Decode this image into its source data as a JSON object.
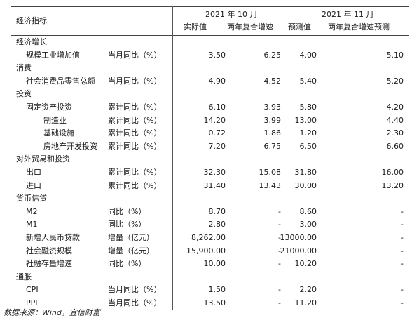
{
  "header": {
    "col_indicator": "经济指标",
    "group_oct": "2021 年 10 月",
    "group_nov": "2021 年 11 月",
    "col_actual": "实际值",
    "col_cagr": "两年复合增速",
    "col_forecast": "预测值",
    "col_cagr_forecast": "两年复合增速预测"
  },
  "rows": [
    {
      "level": 0,
      "name": "经济增长",
      "type": "",
      "v1": "",
      "v2": "",
      "v3": "",
      "v4": ""
    },
    {
      "level": 1,
      "name": "规模工业增加值",
      "type": "当月同比（%）",
      "v1": "3.50",
      "v2": "6.25",
      "v3": "4.00",
      "v4": "5.10"
    },
    {
      "level": 0,
      "name": "消费",
      "type": "",
      "v1": "",
      "v2": "",
      "v3": "",
      "v4": ""
    },
    {
      "level": 1,
      "name": "社会消费品零售总额",
      "type": "当月同比（%）",
      "v1": "4.90",
      "v2": "4.52",
      "v3": "5.40",
      "v4": "5.20"
    },
    {
      "level": 0,
      "name": "投资",
      "type": "",
      "v1": "",
      "v2": "",
      "v3": "",
      "v4": ""
    },
    {
      "level": 1,
      "name": "固定资产投资",
      "type": "累计同比（%）",
      "v1": "6.10",
      "v2": "3.93",
      "v3": "5.80",
      "v4": "4.20"
    },
    {
      "level": 2,
      "name": "制造业",
      "type": "累计同比（%）",
      "v1": "14.20",
      "v2": "3.99",
      "v3": "13.00",
      "v4": "4.40"
    },
    {
      "level": 2,
      "name": "基础设施",
      "type": "累计同比（%）",
      "v1": "0.72",
      "v2": "1.86",
      "v3": "1.20",
      "v4": "2.30"
    },
    {
      "level": 2,
      "name": "房地产开发投资",
      "type": "累计同比（%）",
      "v1": "7.20",
      "v2": "6.75",
      "v3": "6.50",
      "v4": "6.60"
    },
    {
      "level": 0,
      "name": "对外贸易和投资",
      "type": "",
      "v1": "",
      "v2": "",
      "v3": "",
      "v4": ""
    },
    {
      "level": 1,
      "name": "出口",
      "type": "累计同比（%）",
      "v1": "32.30",
      "v2": "15.08",
      "v3": "31.80",
      "v4": "16.00"
    },
    {
      "level": 1,
      "name": "进口",
      "type": "累计同比（%）",
      "v1": "31.40",
      "v2": "13.43",
      "v3": "30.00",
      "v4": "13.20"
    },
    {
      "level": 0,
      "name": "货币信贷",
      "type": "",
      "v1": "",
      "v2": "",
      "v3": "",
      "v4": ""
    },
    {
      "level": 1,
      "name": "M2",
      "type": "同比（%）",
      "v1": "8.70",
      "v2": "-",
      "v3": "8.60",
      "v4": "-"
    },
    {
      "level": 1,
      "name": "M1",
      "type": "同比（%）",
      "v1": "2.80",
      "v2": "-",
      "v3": "3.00",
      "v4": "-"
    },
    {
      "level": 1,
      "name": "新增人民币贷款",
      "type": "增量（亿元）",
      "v1": "8,262.00",
      "v2": "-",
      "v3": "13000.00",
      "v4": "-"
    },
    {
      "level": 1,
      "name": "社会融资规模",
      "type": "增量（亿元）",
      "v1": "15,900.00",
      "v2": "-",
      "v3": "21000.00",
      "v4": "-"
    },
    {
      "level": 1,
      "name": "社融存量增速",
      "type": "同比（%）",
      "v1": "10.00",
      "v2": "-",
      "v3": "10.20",
      "v4": "-"
    },
    {
      "level": 0,
      "name": "通胀",
      "type": "",
      "v1": "",
      "v2": "",
      "v3": "",
      "v4": ""
    },
    {
      "level": 1,
      "name": "CPI",
      "type": "当月同比（%）",
      "v1": "1.50",
      "v2": "-",
      "v3": "2.20",
      "v4": "-"
    },
    {
      "level": 1,
      "name": "PPI",
      "type": "当月同比（%）",
      "v1": "13.50",
      "v2": "-",
      "v3": "11.20",
      "v4": "-"
    }
  ],
  "footer": {
    "source": "数据来源：Wind，宜信财富"
  }
}
